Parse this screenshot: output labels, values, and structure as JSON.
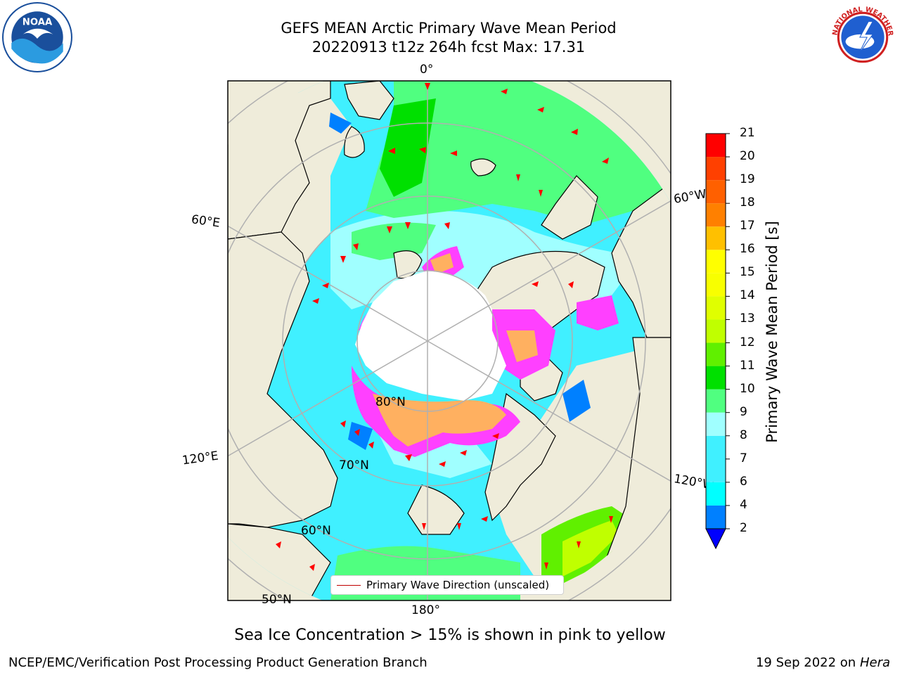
{
  "title": {
    "line1": "GEFS MEAN Arctic Primary Wave Mean Period",
    "line2": "20220913 t12z 264h fcst   Max: 17.31"
  },
  "logos": {
    "noaa_text": "NOAA",
    "nws_text": "NATIONAL WEATHER SERVICE"
  },
  "map": {
    "projection": "north polar stereographic",
    "longitude_labels": [
      "0°",
      "60°W",
      "120°W",
      "180°",
      "120°E",
      "60°E"
    ],
    "latitude_labels": [
      "80°N",
      "70°N",
      "60°N",
      "50°N"
    ],
    "colors": {
      "land": "#efecda",
      "pole_hole": "#ffffff",
      "gridline": "#b0b0b0",
      "arrow": "#ff0000",
      "ice": "#ff40ff",
      "ice_thick": "#ffb060"
    },
    "legend_label": "Primary Wave Direction (unscaled)"
  },
  "colorbar": {
    "label": "Primary Wave Mean Period [s]",
    "ticks": [
      "21",
      "20",
      "19",
      "18",
      "17",
      "16",
      "15",
      "14",
      "13",
      "12",
      "11",
      "10",
      "9",
      "8",
      "7",
      "6",
      "4",
      "2"
    ],
    "bins": [
      {
        "from": 0,
        "to": 2,
        "color": "#0000ff"
      },
      {
        "from": 2,
        "to": 4,
        "color": "#0080ff"
      },
      {
        "from": 4,
        "to": 6,
        "color": "#00ffff"
      },
      {
        "from": 6,
        "to": 8,
        "color": "#40f0ff"
      },
      {
        "from": 8,
        "to": 9,
        "color": "#a0ffff"
      },
      {
        "from": 9,
        "to": 10,
        "color": "#50ff80"
      },
      {
        "from": 10,
        "to": 11,
        "color": "#00e000"
      },
      {
        "from": 11,
        "to": 12,
        "color": "#60f000"
      },
      {
        "from": 12,
        "to": 13,
        "color": "#c0ff00"
      },
      {
        "from": 13,
        "to": 14,
        "color": "#e0ff00"
      },
      {
        "from": 14,
        "to": 15,
        "color": "#f8ff00"
      },
      {
        "from": 15,
        "to": 16,
        "color": "#ffff00"
      },
      {
        "from": 16,
        "to": 17,
        "color": "#ffc000"
      },
      {
        "from": 17,
        "to": 18,
        "color": "#ff8000"
      },
      {
        "from": 18,
        "to": 19,
        "color": "#ff6000"
      },
      {
        "from": 19,
        "to": 20,
        "color": "#ff4000"
      },
      {
        "from": 20,
        "to": 21,
        "color": "#ff0000"
      }
    ]
  },
  "subtitle": "Sea Ice Concentration > 15% is shown in pink to yellow",
  "footer": {
    "credit": "NCEP/EMC/Verification Post Processing Product Generation Branch",
    "date": "19 Sep 2022 on",
    "host": "Hera"
  }
}
